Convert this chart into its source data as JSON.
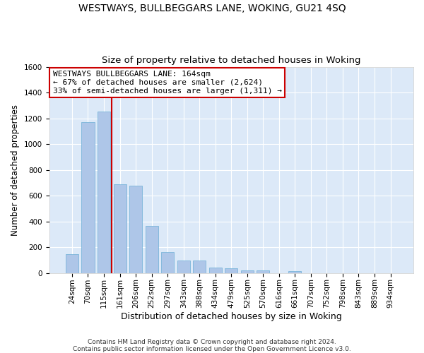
{
  "title": "WESTWAYS, BULLBEGGARS LANE, WOKING, GU21 4SQ",
  "subtitle": "Size of property relative to detached houses in Woking",
  "xlabel": "Distribution of detached houses by size in Woking",
  "ylabel": "Number of detached properties",
  "categories": [
    "24sqm",
    "70sqm",
    "115sqm",
    "161sqm",
    "206sqm",
    "252sqm",
    "297sqm",
    "343sqm",
    "388sqm",
    "434sqm",
    "479sqm",
    "525sqm",
    "570sqm",
    "616sqm",
    "661sqm",
    "707sqm",
    "752sqm",
    "798sqm",
    "843sqm",
    "889sqm",
    "934sqm"
  ],
  "values": [
    145,
    1170,
    1250,
    690,
    680,
    365,
    165,
    95,
    95,
    42,
    35,
    22,
    22,
    0,
    15,
    0,
    0,
    0,
    0,
    0,
    0
  ],
  "bar_color": "#aec6e8",
  "bar_edge_color": "#6baed6",
  "vline_color": "#cc0000",
  "vline_x_index": 3,
  "annotation_text": "WESTWAYS BULLBEGGARS LANE: 164sqm\n← 67% of detached houses are smaller (2,624)\n33% of semi-detached houses are larger (1,311) →",
  "annotation_box_facecolor": "#ffffff",
  "annotation_box_edgecolor": "#cc0000",
  "ylim": [
    0,
    1600
  ],
  "yticks": [
    0,
    200,
    400,
    600,
    800,
    1000,
    1200,
    1400,
    1600
  ],
  "background_color": "#dce9f8",
  "grid_color": "#ffffff",
  "footnote": "Contains HM Land Registry data © Crown copyright and database right 2024.\nContains public sector information licensed under the Open Government Licence v3.0.",
  "title_fontsize": 10,
  "subtitle_fontsize": 9.5,
  "xlabel_fontsize": 9,
  "ylabel_fontsize": 8.5,
  "tick_fontsize": 7.5,
  "annotation_fontsize": 8,
  "footnote_fontsize": 6.5
}
